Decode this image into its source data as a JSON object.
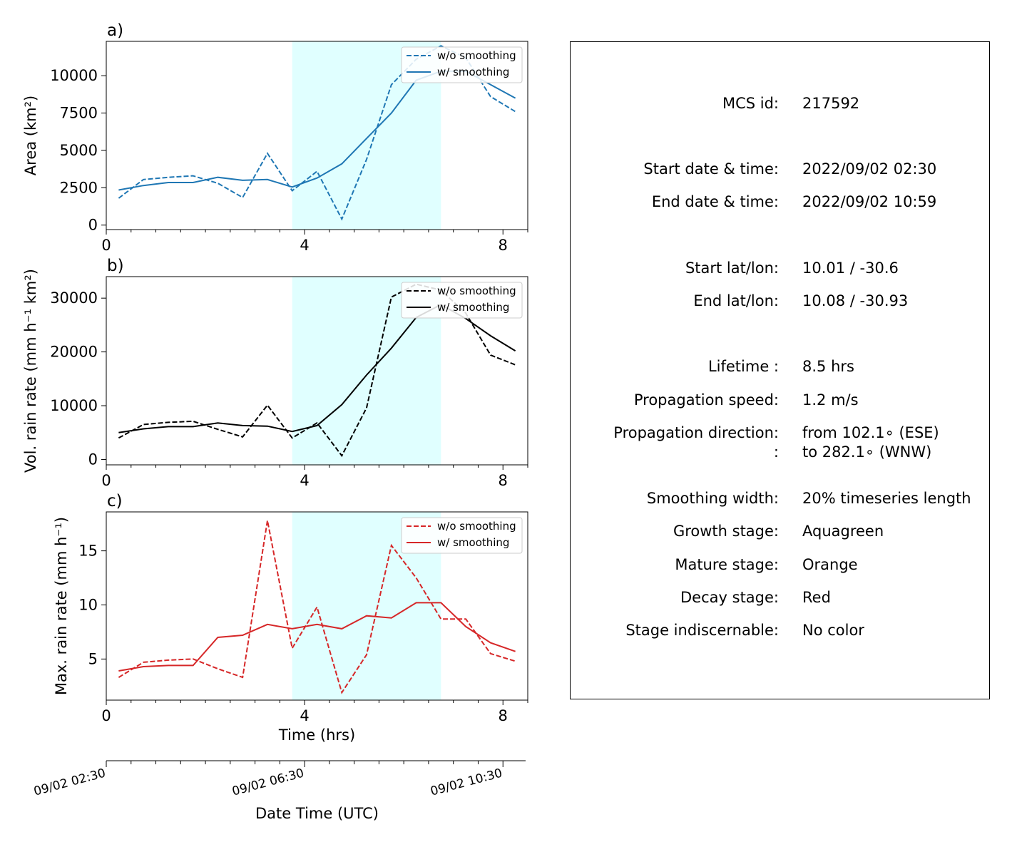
{
  "colors": {
    "area": "#1f77b4",
    "volrain": "#000000",
    "maxrain": "#d62728",
    "highlight": "#e0ffff"
  },
  "chart_data": [
    {
      "type": "line",
      "panel_label": "a)",
      "ylabel": "Area (km²)",
      "xlabel": "",
      "xlim": [
        0,
        8.5
      ],
      "ylim": [
        -300,
        12300
      ],
      "xticks": [
        0,
        4,
        8
      ],
      "yticks": [
        0,
        2500,
        5000,
        7500,
        10000
      ],
      "ytick_labels": [
        "0",
        "2500",
        "5000",
        "7500",
        "10000"
      ],
      "shaded_span": [
        3.75,
        6.75
      ],
      "legend": "top-right",
      "x": [
        0.25,
        0.75,
        1.25,
        1.75,
        2.25,
        2.75,
        3.25,
        3.75,
        4.25,
        4.75,
        5.25,
        5.75,
        6.25,
        6.75,
        7.25,
        7.75,
        8.25
      ],
      "series": [
        {
          "name": "w/o smoothing",
          "dash": true,
          "values": [
            1800,
            3050,
            3200,
            3300,
            2800,
            1850,
            4800,
            2300,
            3600,
            400,
            4400,
            9400,
            11100,
            12000,
            11200,
            8600,
            7600
          ]
        },
        {
          "name": "w/ smoothing",
          "dash": false,
          "values": [
            2350,
            2650,
            2850,
            2850,
            3200,
            3000,
            3050,
            2550,
            3150,
            4100,
            5800,
            7500,
            9700,
            10300,
            10300,
            9400,
            8500
          ]
        }
      ]
    },
    {
      "type": "line",
      "panel_label": "b)",
      "ylabel": "Vol. rain rate (mm h⁻¹ km²)",
      "xlabel": "",
      "xlim": [
        0,
        8.5
      ],
      "ylim": [
        -1000,
        34000
      ],
      "xticks": [
        0,
        4,
        8
      ],
      "yticks": [
        0,
        10000,
        20000,
        30000
      ],
      "ytick_labels": [
        "0",
        "10000",
        "20000",
        "30000"
      ],
      "shaded_span": [
        3.75,
        6.75
      ],
      "legend": "top-right",
      "x": [
        0.25,
        0.75,
        1.25,
        1.75,
        2.25,
        2.75,
        3.25,
        3.75,
        4.25,
        4.75,
        5.25,
        5.75,
        6.25,
        6.75,
        7.25,
        7.75,
        8.25
      ],
      "series": [
        {
          "name": "w/o smoothing",
          "dash": true,
          "values": [
            4000,
            6500,
            6900,
            7100,
            5600,
            4200,
            10100,
            4000,
            6800,
            700,
            9600,
            30200,
            32600,
            31500,
            27200,
            19400,
            17600
          ]
        },
        {
          "name": "w/ smoothing",
          "dash": false,
          "values": [
            5000,
            5700,
            6100,
            6100,
            6800,
            6300,
            6200,
            5200,
            6300,
            10200,
            15700,
            20700,
            26400,
            28800,
            26200,
            23000,
            20200
          ]
        }
      ]
    },
    {
      "type": "line",
      "panel_label": "c)",
      "ylabel": "Max. rain rate (mm h⁻¹)",
      "xlabel": "Time (hrs)",
      "xlim": [
        0,
        8.5
      ],
      "ylim": [
        1.2,
        18.6
      ],
      "xticks": [
        0,
        4,
        8
      ],
      "yticks": [
        5,
        10,
        15
      ],
      "ytick_labels": [
        "5",
        "10",
        "15"
      ],
      "shaded_span": [
        3.75,
        6.75
      ],
      "legend": "top-right",
      "x": [
        0.25,
        0.75,
        1.25,
        1.75,
        2.25,
        2.75,
        3.25,
        3.75,
        4.25,
        4.75,
        5.25,
        5.75,
        6.25,
        6.75,
        7.25,
        7.75,
        8.25
      ],
      "series": [
        {
          "name": "w/o smoothing",
          "dash": true,
          "values": [
            3.3,
            4.7,
            4.9,
            5.0,
            4.1,
            3.3,
            17.8,
            6.0,
            9.8,
            1.9,
            5.4,
            15.5,
            12.5,
            8.7,
            8.7,
            5.5,
            4.8
          ]
        },
        {
          "name": "w/ smoothing",
          "dash": false,
          "values": [
            3.9,
            4.3,
            4.4,
            4.4,
            7.0,
            7.2,
            8.2,
            7.8,
            8.2,
            7.8,
            9.0,
            8.8,
            10.2,
            10.2,
            8.0,
            6.5,
            5.7
          ]
        }
      ]
    }
  ],
  "datetime_axis": {
    "xlabel": "Date Time (UTC)",
    "tick_labels": [
      "09/02 02:30",
      "09/02 06:30",
      "09/02 10:30"
    ]
  },
  "info": {
    "rows": [
      {
        "key": "MCS id:",
        "value": "217592"
      },
      {
        "key": "Start date & time:",
        "value": "2022/09/02 02:30"
      },
      {
        "key": "End date & time:",
        "value": "2022/09/02 10:59"
      },
      {
        "key": "Start lat/lon:",
        "value": "10.01 / -30.6"
      },
      {
        "key": "End lat/lon:",
        "value": "10.08 / -30.93"
      },
      {
        "key": "Lifetime :",
        "value": "8.5 hrs"
      },
      {
        "key": "Propagation speed:",
        "value": "1.2 m/s"
      },
      {
        "key": "Propagation direction:",
        "value": "from 102.1∘ (ESE)"
      },
      {
        "key": ":",
        "value": "to   282.1∘ (WNW)"
      },
      {
        "key": "Smoothing width:",
        "value": "20% timeseries length"
      },
      {
        "key": "Growth stage:",
        "value": "Aquagreen"
      },
      {
        "key": "Mature stage:",
        "value": "Orange"
      },
      {
        "key": "Decay stage:",
        "value": "Red"
      },
      {
        "key": "Stage indiscernable:",
        "value": "No color"
      }
    ]
  }
}
